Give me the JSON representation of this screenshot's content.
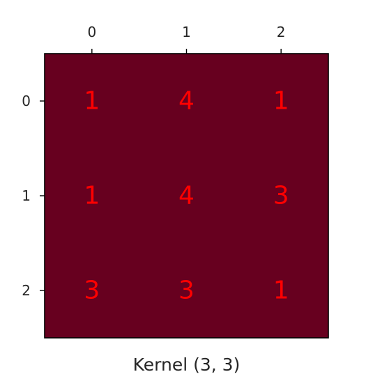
{
  "chart_data": {
    "type": "heatmap",
    "title": "",
    "xlabel": "Kernel (3, 3)",
    "ylabel": "",
    "x_ticks": [
      "0",
      "1",
      "2"
    ],
    "y_ticks": [
      "0",
      "1",
      "2"
    ],
    "tick_position_x": "top",
    "grid": false,
    "values": [
      [
        1,
        4,
        1
      ],
      [
        1,
        4,
        3
      ],
      [
        3,
        3,
        1
      ]
    ],
    "cell_color": "#67001f",
    "text_color": "#ff0000",
    "frame_color": "#000000"
  }
}
